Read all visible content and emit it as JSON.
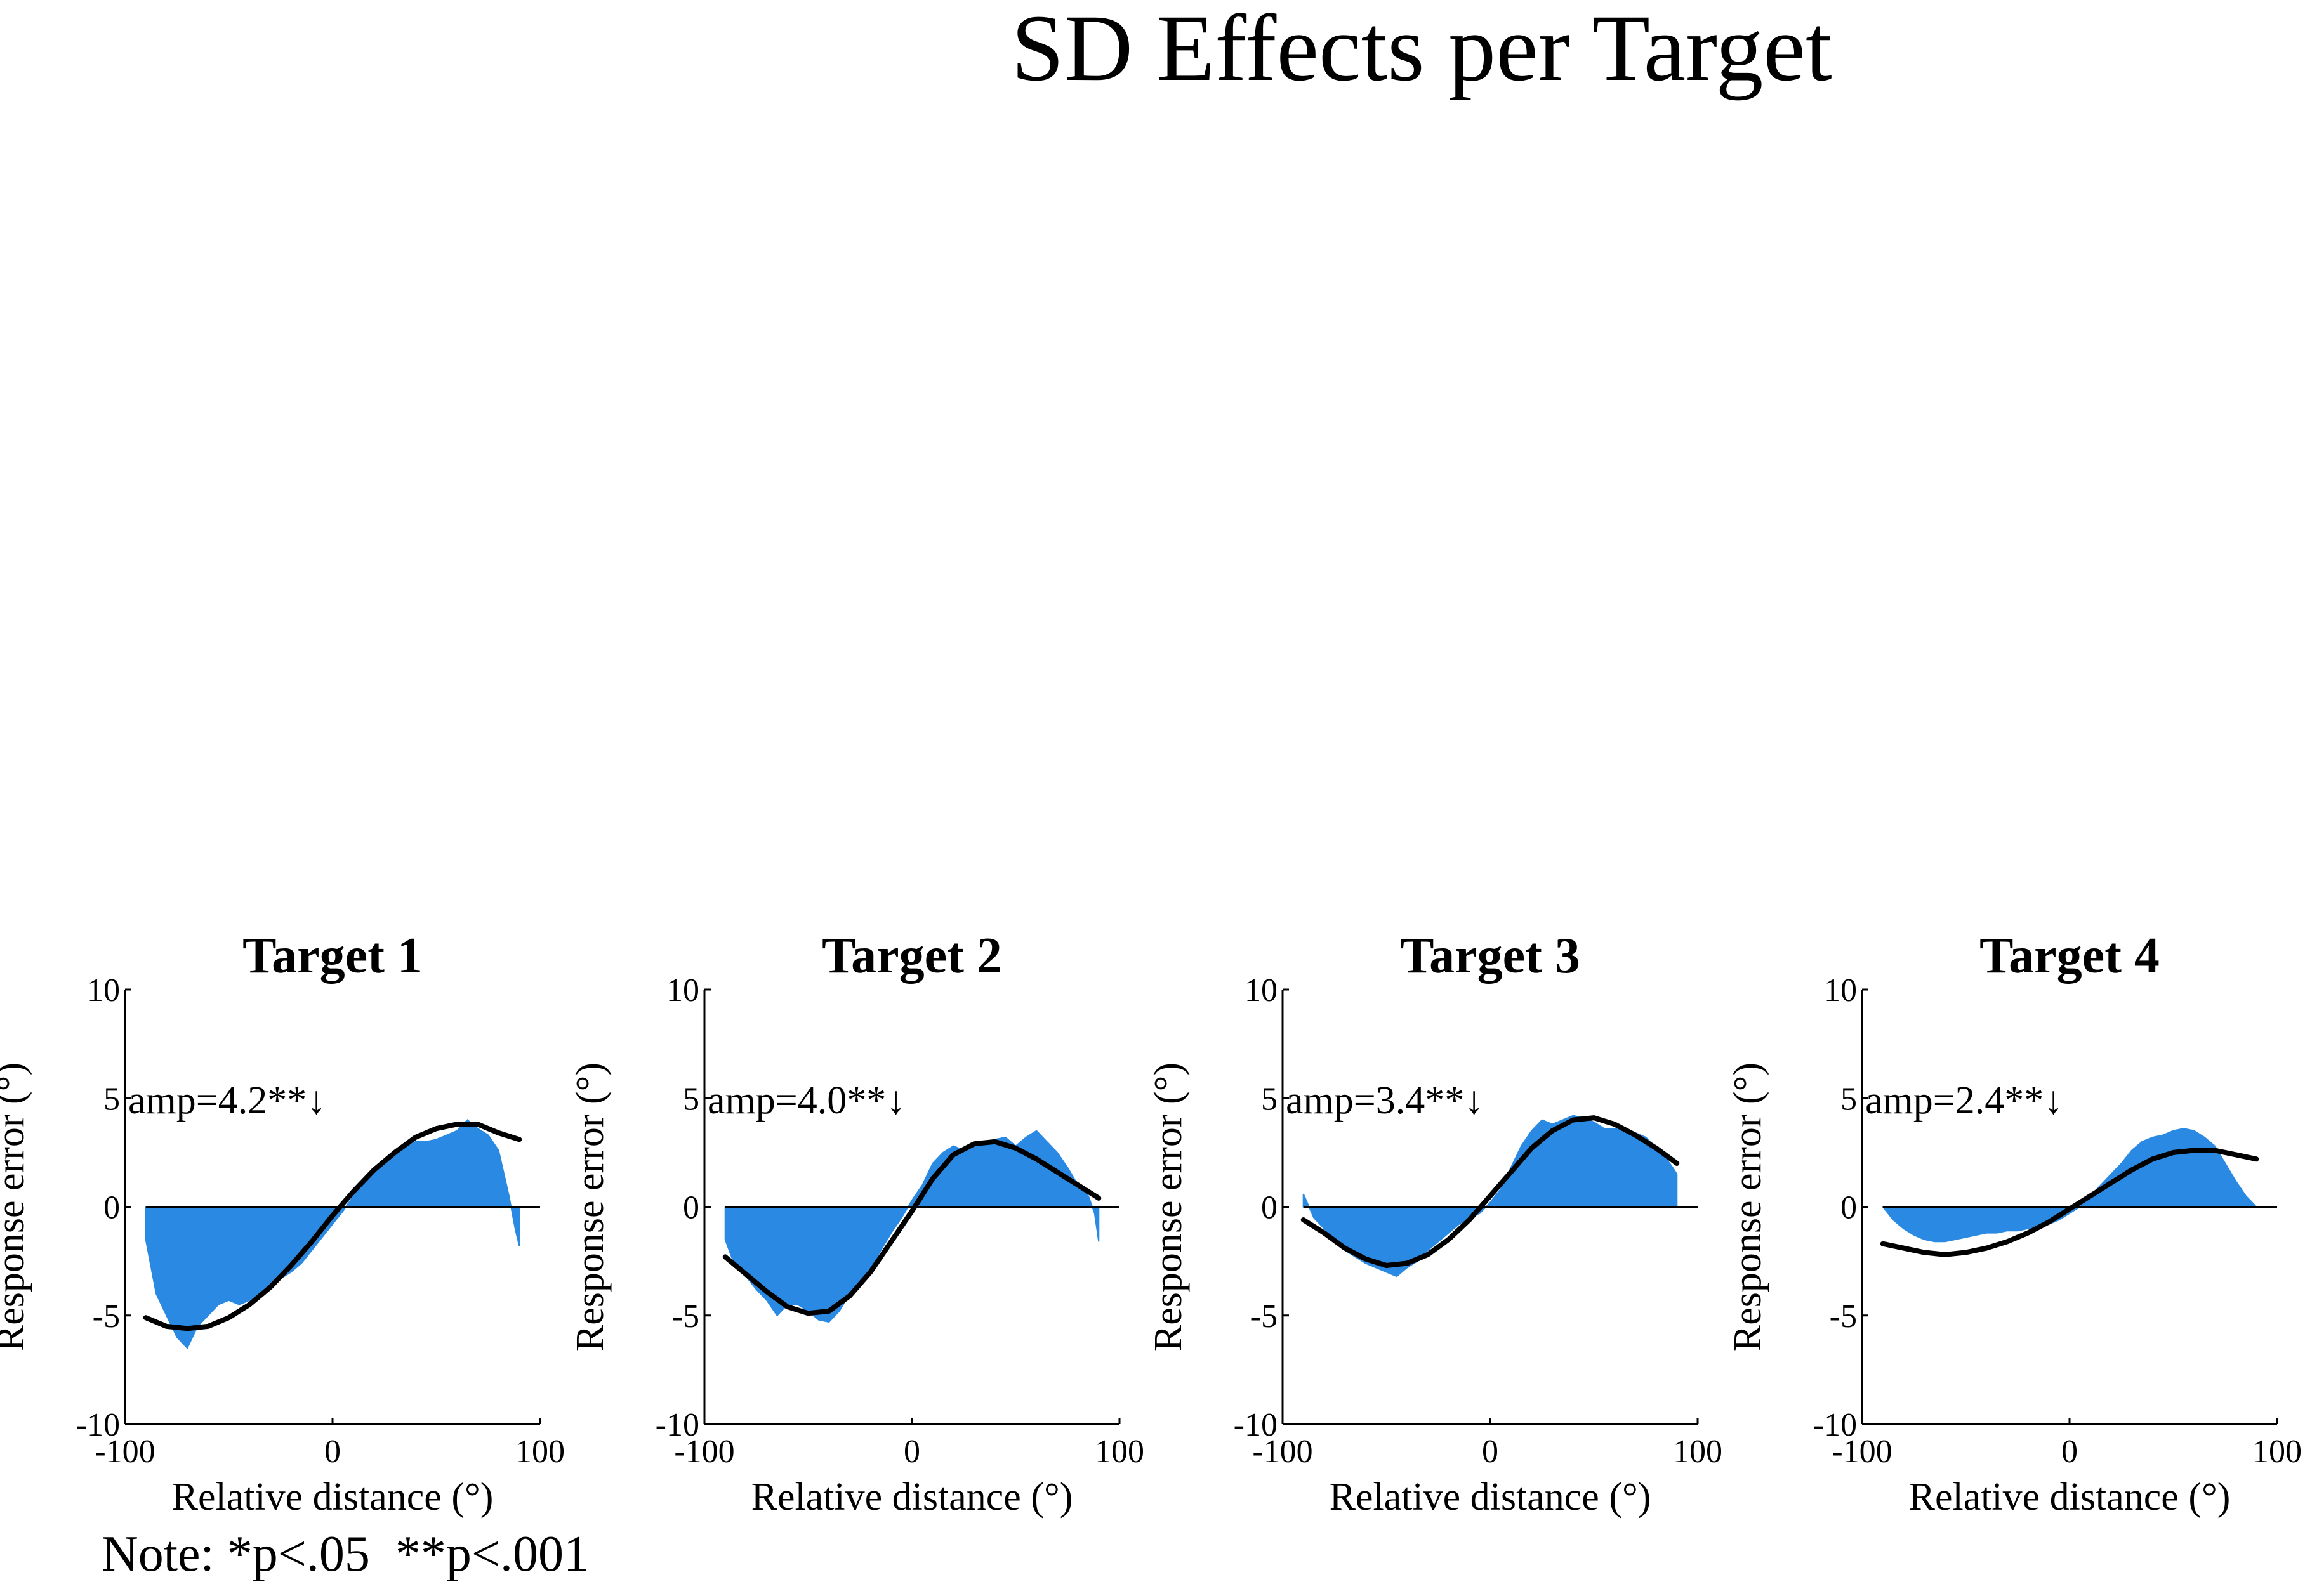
{
  "figure": {
    "title": "SD Effects per Target",
    "note": "Note: *p<.05  **p<.001"
  },
  "colors": {
    "bar_fill": "#2a8ae3",
    "fit_line": "#000000",
    "axis": "#000000"
  },
  "chart_data": [
    {
      "type": "area",
      "title": "Target 1",
      "xlabel": "Relative distance (°)",
      "ylabel": "Response error (°)",
      "xlim": [
        -100,
        100
      ],
      "ylim": [
        -10,
        10
      ],
      "xticks": [
        -100,
        0,
        100
      ],
      "yticks": [
        -10,
        -5,
        0,
        5,
        10
      ],
      "annotation": "amp=4.2**↓",
      "series": [
        {
          "x": [
            -90,
            -85,
            -80,
            -75,
            -70,
            -65,
            -60,
            -55,
            -50,
            -45,
            -40,
            -35,
            -30,
            -25,
            -20,
            -15,
            -10,
            -5,
            0,
            5,
            10,
            15,
            20,
            25,
            30,
            35,
            40,
            45,
            50,
            55,
            60,
            65,
            70,
            75,
            80,
            85,
            88,
            90
          ],
          "y": [
            -1.5,
            -4.0,
            -5.0,
            -6.0,
            -6.5,
            -5.5,
            -5.0,
            -4.5,
            -4.3,
            -4.5,
            -4.3,
            -4.0,
            -3.8,
            -3.3,
            -3.0,
            -2.6,
            -2.0,
            -1.4,
            -0.8,
            -0.2,
            0.5,
            1.2,
            1.8,
            2.1,
            2.4,
            2.7,
            3.0,
            3.0,
            3.1,
            3.3,
            3.5,
            4.0,
            3.6,
            3.3,
            2.6,
            0.5,
            -1.0,
            -1.8
          ]
        }
      ],
      "fit": {
        "amplitude": 4.2,
        "x": [
          -90,
          -80,
          -70,
          -60,
          -50,
          -40,
          -30,
          -20,
          -10,
          0,
          10,
          20,
          30,
          40,
          50,
          60,
          70,
          80,
          90
        ],
        "y": [
          -5.1,
          -5.5,
          -5.6,
          -5.5,
          -5.1,
          -4.5,
          -3.7,
          -2.7,
          -1.6,
          -0.4,
          0.7,
          1.7,
          2.5,
          3.2,
          3.6,
          3.8,
          3.8,
          3.4,
          3.1
        ]
      }
    },
    {
      "type": "area",
      "title": "Target 2",
      "xlabel": "Relative distance (°)",
      "ylabel": "Response error (°)",
      "xlim": [
        -100,
        100
      ],
      "ylim": [
        -10,
        10
      ],
      "xticks": [
        -100,
        0,
        100
      ],
      "yticks": [
        -10,
        -5,
        0,
        5,
        10
      ],
      "annotation": "amp=4.0**↓",
      "series": [
        {
          "x": [
            -90,
            -85,
            -80,
            -75,
            -70,
            -65,
            -60,
            -55,
            -50,
            -45,
            -40,
            -35,
            -30,
            -25,
            -20,
            -15,
            -10,
            -5,
            0,
            5,
            10,
            15,
            20,
            25,
            30,
            35,
            40,
            45,
            50,
            55,
            60,
            65,
            70,
            75,
            80,
            85,
            88,
            90
          ],
          "y": [
            -1.5,
            -2.8,
            -3.2,
            -3.8,
            -4.3,
            -5.0,
            -4.5,
            -4.5,
            -4.8,
            -5.2,
            -5.3,
            -4.8,
            -4.0,
            -3.5,
            -2.8,
            -2.0,
            -1.2,
            -0.5,
            0.3,
            1.0,
            2.0,
            2.5,
            2.8,
            2.6,
            2.8,
            3.0,
            3.1,
            3.2,
            2.8,
            3.2,
            3.5,
            3.0,
            2.5,
            1.8,
            1.0,
            0.5,
            -0.3,
            -1.6
          ]
        }
      ],
      "fit": {
        "amplitude": 4.0,
        "x": [
          -90,
          -80,
          -70,
          -60,
          -50,
          -40,
          -30,
          -20,
          -10,
          0,
          10,
          20,
          30,
          40,
          50,
          60,
          70,
          80,
          90
        ],
        "y": [
          -2.3,
          -3.1,
          -3.9,
          -4.6,
          -4.9,
          -4.8,
          -4.1,
          -3.0,
          -1.6,
          -0.2,
          1.3,
          2.4,
          2.9,
          3.0,
          2.7,
          2.2,
          1.6,
          1.0,
          0.4
        ]
      }
    },
    {
      "type": "area",
      "title": "Target 3",
      "xlabel": "Relative distance (°)",
      "ylabel": "Response error (°)",
      "xlim": [
        -100,
        100
      ],
      "ylim": [
        -10,
        10
      ],
      "xticks": [
        -100,
        0,
        100
      ],
      "yticks": [
        -10,
        -5,
        0,
        5,
        10
      ],
      "annotation": "amp=3.4**↓",
      "series": [
        {
          "x": [
            -90,
            -85,
            -80,
            -75,
            -70,
            -65,
            -60,
            -55,
            -50,
            -45,
            -40,
            -35,
            -30,
            -25,
            -20,
            -15,
            -10,
            -5,
            0,
            5,
            10,
            15,
            20,
            25,
            30,
            35,
            40,
            45,
            50,
            55,
            60,
            65,
            70,
            75,
            80,
            85,
            88,
            90
          ],
          "y": [
            0.6,
            -0.5,
            -1.0,
            -1.5,
            -2.0,
            -2.3,
            -2.6,
            -2.8,
            -3.0,
            -3.2,
            -2.8,
            -2.5,
            -2.0,
            -1.6,
            -1.2,
            -0.8,
            -0.5,
            -0.3,
            0.2,
            0.8,
            1.8,
            2.8,
            3.5,
            4.0,
            3.8,
            4.0,
            4.2,
            4.1,
            3.9,
            3.6,
            3.6,
            3.5,
            3.4,
            3.2,
            2.7,
            2.2,
            1.8,
            1.5
          ]
        }
      ],
      "fit": {
        "amplitude": 3.4,
        "x": [
          -90,
          -80,
          -70,
          -60,
          -50,
          -40,
          -30,
          -20,
          -10,
          0,
          10,
          20,
          30,
          40,
          50,
          60,
          70,
          80,
          90
        ],
        "y": [
          -0.6,
          -1.2,
          -1.9,
          -2.4,
          -2.7,
          -2.6,
          -2.2,
          -1.5,
          -0.6,
          0.5,
          1.6,
          2.7,
          3.5,
          4.0,
          4.1,
          3.8,
          3.3,
          2.7,
          2.0
        ]
      }
    },
    {
      "type": "area",
      "title": "Target 4",
      "xlabel": "Relative distance (°)",
      "ylabel": "Response error (°)",
      "xlim": [
        -100,
        100
      ],
      "ylim": [
        -10,
        10
      ],
      "xticks": [
        -100,
        0,
        100
      ],
      "yticks": [
        -10,
        -5,
        0,
        5,
        10
      ],
      "annotation": "amp=2.4**↓",
      "series": [
        {
          "x": [
            -90,
            -85,
            -80,
            -75,
            -70,
            -65,
            -60,
            -55,
            -50,
            -45,
            -40,
            -35,
            -30,
            -25,
            -20,
            -15,
            -10,
            -5,
            0,
            5,
            10,
            15,
            20,
            25,
            30,
            35,
            40,
            45,
            50,
            55,
            60,
            65,
            70,
            75,
            80,
            85,
            88,
            90
          ],
          "y": [
            0.0,
            -0.6,
            -1.0,
            -1.3,
            -1.5,
            -1.6,
            -1.6,
            -1.5,
            -1.4,
            -1.3,
            -1.2,
            -1.2,
            -1.1,
            -1.1,
            -1.0,
            -1.0,
            -0.8,
            -0.6,
            -0.3,
            0.0,
            0.5,
            1.0,
            1.5,
            2.0,
            2.6,
            3.0,
            3.2,
            3.3,
            3.5,
            3.6,
            3.5,
            3.2,
            2.8,
            2.0,
            1.2,
            0.5,
            0.2,
            0.0
          ]
        }
      ],
      "fit": {
        "amplitude": 2.4,
        "x": [
          -90,
          -80,
          -70,
          -60,
          -50,
          -40,
          -30,
          -20,
          -10,
          0,
          10,
          20,
          30,
          40,
          50,
          60,
          70,
          80,
          90
        ],
        "y": [
          -1.7,
          -1.9,
          -2.1,
          -2.2,
          -2.1,
          -1.9,
          -1.6,
          -1.2,
          -0.7,
          -0.1,
          0.5,
          1.1,
          1.7,
          2.2,
          2.5,
          2.6,
          2.6,
          2.4,
          2.2
        ]
      }
    }
  ]
}
